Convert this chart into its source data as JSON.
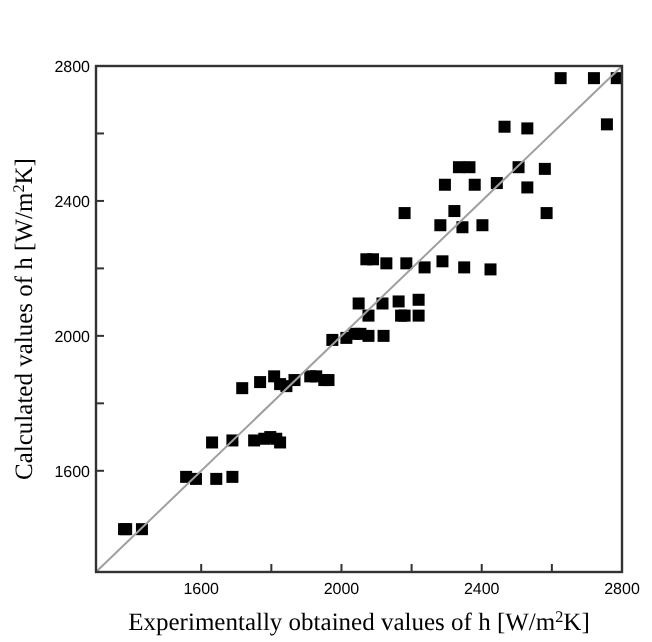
{
  "chart_data": {
    "type": "scatter",
    "xlabel": "Experimentally obtained values of h [W/m$^{2}$K]",
    "ylabel": "Calculated values of h [W/m$^{2}$K]",
    "xlim": [
      1300,
      2800
    ],
    "ylim": [
      1300,
      2800
    ],
    "xticks": [
      1600,
      {
        "value": 1800,
        "label": null
      },
      2000,
      {
        "value": 2200,
        "label": null
      },
      2400,
      {
        "value": 2600,
        "label": null
      },
      2800
    ],
    "yticks": [
      1600,
      {
        "value": 1800,
        "label": null
      },
      2000,
      {
        "value": 2200,
        "label": null
      },
      2400,
      {
        "value": 2600,
        "label": null
      },
      2800
    ],
    "grid": false,
    "marker": "square",
    "series": [
      {
        "color": "#000000",
        "x": [
          1380,
          1386,
          1431,
          1557,
          1585,
          1643,
          1689,
          1631,
          1689,
          1717,
          1768,
          1751,
          1780,
          1797,
          1814,
          1825,
          1808,
          1825,
          1843,
          1866,
          1911,
          1928,
          1951,
          1963,
          1974,
          2014,
          2037,
          2054,
          2077,
          2120,
          2049,
          2077,
          2117,
          2163,
          2220,
          2170,
          2180,
          2220,
          2071,
          2090,
          2128,
          2185,
          2237,
          2288,
          2350,
          2425,
          2282,
          2345,
          2402,
          2180,
          2322,
          2585,
          2295,
          2380,
          2443,
          2530,
          2335,
          2365,
          2505,
          2580,
          2465,
          2530,
          2625,
          2720,
          2785,
          2757
        ],
        "values": [
          1427,
          1427,
          1427,
          1582,
          1576,
          1576,
          1582,
          1684,
          1690,
          1845,
          1863,
          1690,
          1695,
          1700,
          1695,
          1684,
          1880,
          1857,
          1851,
          1869,
          1880,
          1880,
          1869,
          1869,
          1988,
          1994,
          2006,
          2006,
          2000,
          2000,
          2096,
          2060,
          2096,
          2102,
          2107,
          2060,
          2060,
          2060,
          2227,
          2227,
          2215,
          2215,
          2203,
          2221,
          2203,
          2197,
          2328,
          2322,
          2328,
          2364,
          2370,
          2364,
          2448,
          2448,
          2453,
          2440,
          2500,
          2500,
          2500,
          2495,
          2620,
          2615,
          2764,
          2764,
          2764,
          2627
        ]
      },
      {
        "type": "line",
        "color": "#a0a0a0",
        "x": [
          1300,
          2800
        ],
        "values": [
          1300,
          2800
        ],
        "marker": "none"
      }
    ]
  }
}
